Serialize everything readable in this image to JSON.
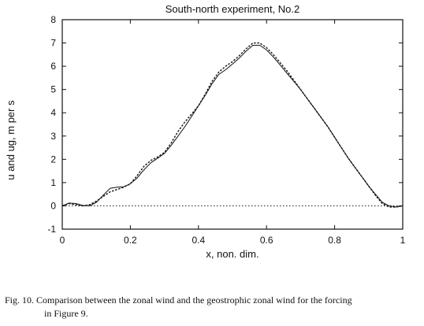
{
  "chart_data": {
    "type": "line",
    "title": "South-north experiment, No.2",
    "xlabel": "x, non. dim.",
    "ylabel": "u and ug, m per s",
    "xlim": [
      0,
      1
    ],
    "ylim": [
      -1,
      8
    ],
    "xticks": [
      0,
      0.2,
      0.4,
      0.6,
      0.8,
      1
    ],
    "xtick_labels": [
      "0",
      "0.2",
      "0.4",
      "0.6",
      "0.8",
      "1"
    ],
    "yticks": [
      -1,
      0,
      1,
      2,
      3,
      4,
      5,
      6,
      7,
      8
    ],
    "ytick_labels": [
      "-1",
      "0",
      "1",
      "2",
      "3",
      "4",
      "5",
      "6",
      "7",
      "8"
    ],
    "grid": false,
    "legend": "none",
    "series": [
      {
        "style": "solid",
        "x": [
          0,
          0.02,
          0.04,
          0.06,
          0.08,
          0.1,
          0.12,
          0.14,
          0.16,
          0.18,
          0.2,
          0.22,
          0.24,
          0.26,
          0.28,
          0.3,
          0.32,
          0.34,
          0.36,
          0.38,
          0.4,
          0.42,
          0.44,
          0.46,
          0.48,
          0.5,
          0.52,
          0.54,
          0.56,
          0.58,
          0.6,
          0.62,
          0.64,
          0.66,
          0.68,
          0.7,
          0.72,
          0.74,
          0.76,
          0.78,
          0.8,
          0.82,
          0.84,
          0.86,
          0.88,
          0.9,
          0.92,
          0.94,
          0.96,
          0.98,
          1
        ],
        "values": [
          0,
          0.12,
          0.1,
          0.02,
          0,
          0.15,
          0.45,
          0.75,
          0.8,
          0.82,
          0.95,
          1.2,
          1.55,
          1.85,
          2.05,
          2.25,
          2.6,
          3.0,
          3.4,
          3.85,
          4.3,
          4.75,
          5.25,
          5.65,
          5.85,
          6.1,
          6.35,
          6.65,
          6.9,
          6.9,
          6.7,
          6.4,
          6.05,
          5.7,
          5.35,
          5.0,
          4.6,
          4.2,
          3.8,
          3.4,
          2.95,
          2.5,
          2.05,
          1.65,
          1.25,
          0.85,
          0.5,
          0.15,
          0,
          -0.05,
          0
        ]
      },
      {
        "style": "dashed",
        "x": [
          0,
          0.02,
          0.04,
          0.06,
          0.08,
          0.1,
          0.12,
          0.14,
          0.16,
          0.18,
          0.2,
          0.22,
          0.24,
          0.26,
          0.28,
          0.3,
          0.32,
          0.34,
          0.36,
          0.38,
          0.4,
          0.42,
          0.44,
          0.46,
          0.48,
          0.5,
          0.52,
          0.54,
          0.56,
          0.58,
          0.6,
          0.62,
          0.64,
          0.66,
          0.68,
          0.7,
          0.72,
          0.74,
          0.76,
          0.78,
          0.8,
          0.82,
          0.84,
          0.86,
          0.88,
          0.9,
          0.92,
          0.94,
          0.96,
          0.98,
          1
        ],
        "values": [
          0,
          0.1,
          0.05,
          0,
          0.05,
          0.2,
          0.4,
          0.6,
          0.7,
          0.8,
          0.95,
          1.3,
          1.7,
          1.95,
          2.1,
          2.3,
          2.7,
          3.2,
          3.6,
          3.95,
          4.3,
          4.8,
          5.35,
          5.75,
          6.0,
          6.2,
          6.45,
          6.75,
          7.0,
          7.0,
          6.8,
          6.5,
          6.15,
          5.8,
          5.4,
          5.0,
          4.6,
          4.2,
          3.8,
          3.4,
          2.95,
          2.5,
          2.05,
          1.65,
          1.25,
          0.85,
          0.45,
          0.1,
          -0.05,
          -0.05,
          0
        ]
      },
      {
        "style": "dotted",
        "x": [
          0,
          1
        ],
        "values": [
          0,
          0
        ]
      }
    ]
  },
  "caption": {
    "label": "Fig. 10.",
    "line1": "Comparison between the zonal wind and the geostrophic zonal wind for the forcing",
    "line2": "in Figure 9."
  }
}
